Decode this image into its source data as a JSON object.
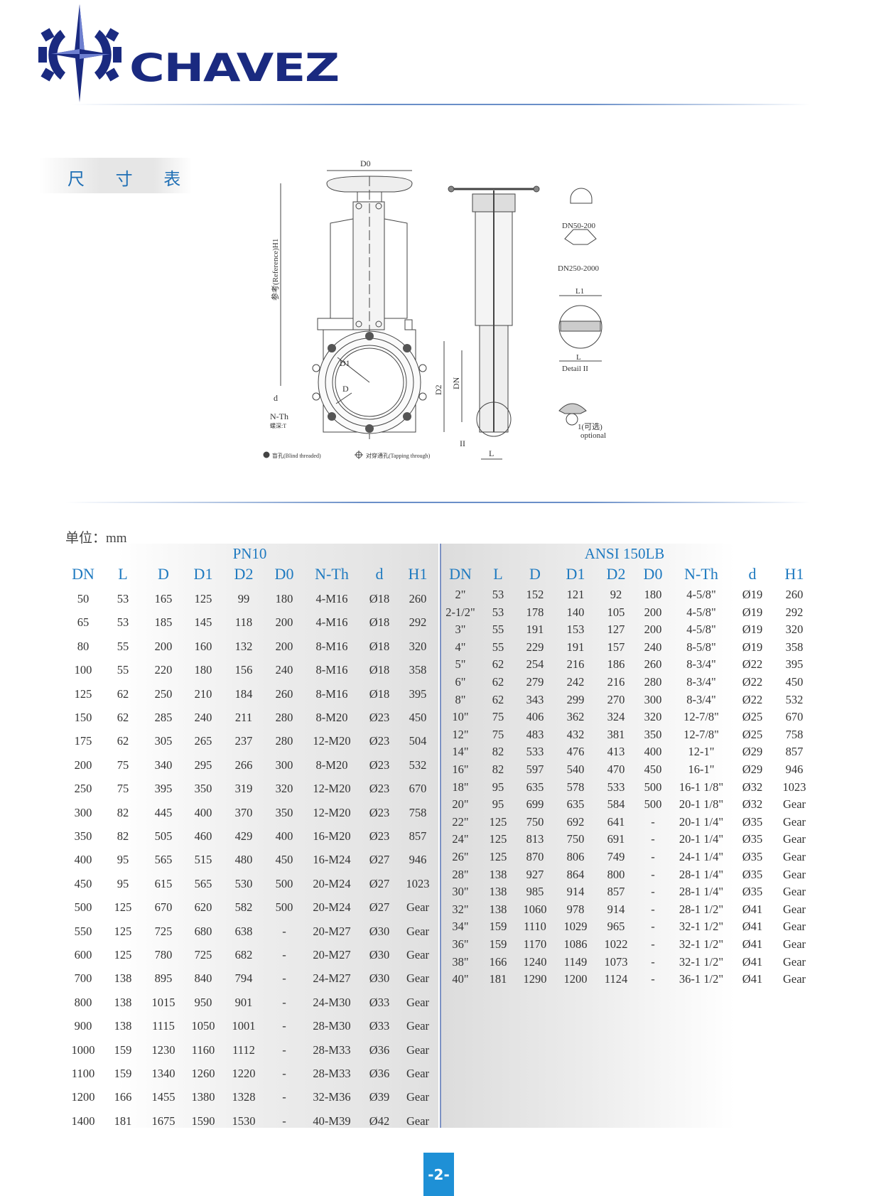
{
  "header": {
    "brand": "CHAVEZ",
    "brand_color": "#1a2a80",
    "accent_color": "#1f7ac0"
  },
  "section_title": "尺 寸 表",
  "diagram": {
    "labels": {
      "d0": "D0",
      "h1": "参考(Reference)H1",
      "d1": "D1",
      "d": "D",
      "d_small": "d",
      "nth": "N-Th",
      "depth": "螺深:T",
      "d2": "D2",
      "dn": "DN",
      "ii": "II",
      "l": "L",
      "dn50": "DN50-200",
      "dn250": "DN250-2000",
      "l1": "L1",
      "detail_l": "L",
      "detail": "Detail II",
      "optional_cn": "1(可选)",
      "optional": "optional",
      "blind": "盲孔(Blind threaded)",
      "tapping": "对穿通孔(Tapping through)"
    }
  },
  "unit_label": "单位：mm",
  "tables": {
    "pn10": {
      "title": "PN10",
      "columns": [
        "DN",
        "L",
        "D",
        "D1",
        "D2",
        "D0",
        "N-Th",
        "d",
        "H1"
      ],
      "rows": [
        [
          "50",
          "53",
          "165",
          "125",
          "99",
          "180",
          "4-M16",
          "Ø18",
          "260"
        ],
        [
          "65",
          "53",
          "185",
          "145",
          "118",
          "200",
          "4-M16",
          "Ø18",
          "292"
        ],
        [
          "80",
          "55",
          "200",
          "160",
          "132",
          "200",
          "8-M16",
          "Ø18",
          "320"
        ],
        [
          "100",
          "55",
          "220",
          "180",
          "156",
          "240",
          "8-M16",
          "Ø18",
          "358"
        ],
        [
          "125",
          "62",
          "250",
          "210",
          "184",
          "260",
          "8-M16",
          "Ø18",
          "395"
        ],
        [
          "150",
          "62",
          "285",
          "240",
          "211",
          "280",
          "8-M20",
          "Ø23",
          "450"
        ],
        [
          "175",
          "62",
          "305",
          "265",
          "237",
          "280",
          "12-M20",
          "Ø23",
          "504"
        ],
        [
          "200",
          "75",
          "340",
          "295",
          "266",
          "300",
          "8-M20",
          "Ø23",
          "532"
        ],
        [
          "250",
          "75",
          "395",
          "350",
          "319",
          "320",
          "12-M20",
          "Ø23",
          "670"
        ],
        [
          "300",
          "82",
          "445",
          "400",
          "370",
          "350",
          "12-M20",
          "Ø23",
          "758"
        ],
        [
          "350",
          "82",
          "505",
          "460",
          "429",
          "400",
          "16-M20",
          "Ø23",
          "857"
        ],
        [
          "400",
          "95",
          "565",
          "515",
          "480",
          "450",
          "16-M24",
          "Ø27",
          "946"
        ],
        [
          "450",
          "95",
          "615",
          "565",
          "530",
          "500",
          "20-M24",
          "Ø27",
          "1023"
        ],
        [
          "500",
          "125",
          "670",
          "620",
          "582",
          "500",
          "20-M24",
          "Ø27",
          "Gear"
        ],
        [
          "550",
          "125",
          "725",
          "680",
          "638",
          "-",
          "20-M27",
          "Ø30",
          "Gear"
        ],
        [
          "600",
          "125",
          "780",
          "725",
          "682",
          "-",
          "20-M27",
          "Ø30",
          "Gear"
        ],
        [
          "700",
          "138",
          "895",
          "840",
          "794",
          "-",
          "24-M27",
          "Ø30",
          "Gear"
        ],
        [
          "800",
          "138",
          "1015",
          "950",
          "901",
          "-",
          "24-M30",
          "Ø33",
          "Gear"
        ],
        [
          "900",
          "138",
          "1115",
          "1050",
          "1001",
          "-",
          "28-M30",
          "Ø33",
          "Gear"
        ],
        [
          "1000",
          "159",
          "1230",
          "1160",
          "1112",
          "-",
          "28-M33",
          "Ø36",
          "Gear"
        ],
        [
          "1100",
          "159",
          "1340",
          "1260",
          "1220",
          "-",
          "28-M33",
          "Ø36",
          "Gear"
        ],
        [
          "1200",
          "166",
          "1455",
          "1380",
          "1328",
          "-",
          "32-M36",
          "Ø39",
          "Gear"
        ],
        [
          "1400",
          "181",
          "1675",
          "1590",
          "1530",
          "-",
          "40-M39",
          "Ø42",
          "Gear"
        ]
      ]
    },
    "ansi150": {
      "title": "ANSI 150LB",
      "columns": [
        "DN",
        "L",
        "D",
        "D1",
        "D2",
        "D0",
        "N-Th",
        "d",
        "H1"
      ],
      "rows": [
        [
          "2\"",
          "53",
          "152",
          "121",
          "92",
          "180",
          "4-5/8\"",
          "Ø19",
          "260"
        ],
        [
          "2-1/2\"",
          "53",
          "178",
          "140",
          "105",
          "200",
          "4-5/8\"",
          "Ø19",
          "292"
        ],
        [
          "3\"",
          "55",
          "191",
          "153",
          "127",
          "200",
          "4-5/8\"",
          "Ø19",
          "320"
        ],
        [
          "4\"",
          "55",
          "229",
          "191",
          "157",
          "240",
          "8-5/8\"",
          "Ø19",
          "358"
        ],
        [
          "5\"",
          "62",
          "254",
          "216",
          "186",
          "260",
          "8-3/4\"",
          "Ø22",
          "395"
        ],
        [
          "6\"",
          "62",
          "279",
          "242",
          "216",
          "280",
          "8-3/4\"",
          "Ø22",
          "450"
        ],
        [
          "8\"",
          "62",
          "343",
          "299",
          "270",
          "300",
          "8-3/4\"",
          "Ø22",
          "532"
        ],
        [
          "10\"",
          "75",
          "406",
          "362",
          "324",
          "320",
          "12-7/8\"",
          "Ø25",
          "670"
        ],
        [
          "12\"",
          "75",
          "483",
          "432",
          "381",
          "350",
          "12-7/8\"",
          "Ø25",
          "758"
        ],
        [
          "14\"",
          "82",
          "533",
          "476",
          "413",
          "400",
          "12-1\"",
          "Ø29",
          "857"
        ],
        [
          "16\"",
          "82",
          "597",
          "540",
          "470",
          "450",
          "16-1\"",
          "Ø29",
          "946"
        ],
        [
          "18\"",
          "95",
          "635",
          "578",
          "533",
          "500",
          "16-1 1/8\"",
          "Ø32",
          "1023"
        ],
        [
          "20\"",
          "95",
          "699",
          "635",
          "584",
          "500",
          "20-1 1/8\"",
          "Ø32",
          "Gear"
        ],
        [
          "22\"",
          "125",
          "750",
          "692",
          "641",
          "-",
          "20-1 1/4\"",
          "Ø35",
          "Gear"
        ],
        [
          "24\"",
          "125",
          "813",
          "750",
          "691",
          "-",
          "20-1 1/4\"",
          "Ø35",
          "Gear"
        ],
        [
          "26\"",
          "125",
          "870",
          "806",
          "749",
          "-",
          "24-1 1/4\"",
          "Ø35",
          "Gear"
        ],
        [
          "28\"",
          "138",
          "927",
          "864",
          "800",
          "-",
          "28-1 1/4\"",
          "Ø35",
          "Gear"
        ],
        [
          "30\"",
          "138",
          "985",
          "914",
          "857",
          "-",
          "28-1 1/4\"",
          "Ø35",
          "Gear"
        ],
        [
          "32\"",
          "138",
          "1060",
          "978",
          "914",
          "-",
          "28-1 1/2\"",
          "Ø41",
          "Gear"
        ],
        [
          "34\"",
          "159",
          "1110",
          "1029",
          "965",
          "-",
          "32-1 1/2\"",
          "Ø41",
          "Gear"
        ],
        [
          "36\"",
          "159",
          "1170",
          "1086",
          "1022",
          "-",
          "32-1 1/2\"",
          "Ø41",
          "Gear"
        ],
        [
          "38\"",
          "166",
          "1240",
          "1149",
          "1073",
          "-",
          "32-1 1/2\"",
          "Ø41",
          "Gear"
        ],
        [
          "40\"",
          "181",
          "1290",
          "1200",
          "1124",
          "-",
          "36-1 1/2\"",
          "Ø41",
          "Gear"
        ]
      ]
    }
  },
  "page_number": "-2-"
}
